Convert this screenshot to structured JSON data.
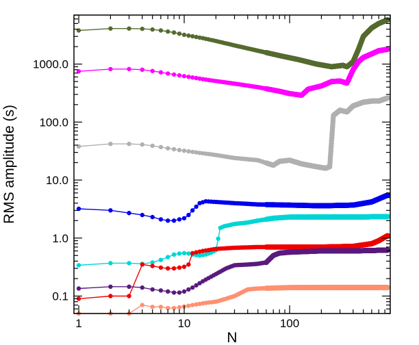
{
  "chart_data": {
    "type": "line",
    "xlabel": "N",
    "ylabel": "RMS amplitude (s)",
    "xscale": "log",
    "yscale": "log",
    "xlim": [
      0.9,
      900
    ],
    "ylim": [
      0.05,
      7000
    ],
    "grid": false,
    "legend": "none",
    "x_ticks": [
      {
        "value": 1,
        "label": "1"
      },
      {
        "value": 10,
        "label": "10"
      },
      {
        "value": 100,
        "label": "100"
      }
    ],
    "y_ticks": [
      {
        "value": 0.1,
        "label": "0.1"
      },
      {
        "value": 1,
        "label": "1.0"
      },
      {
        "value": 10,
        "label": "10.0"
      },
      {
        "value": 100,
        "label": "100.0"
      },
      {
        "value": 1000,
        "label": "1000.0"
      }
    ],
    "series": [
      {
        "color": "#556b2f",
        "points": [
          [
            1,
            3800
          ],
          [
            2,
            4100
          ],
          [
            3,
            4100
          ],
          [
            4,
            4050
          ],
          [
            5,
            3950
          ],
          [
            6,
            3800
          ],
          [
            8,
            3500
          ],
          [
            10,
            3200
          ],
          [
            15,
            2800
          ],
          [
            20,
            2500
          ],
          [
            30,
            2100
          ],
          [
            50,
            1700
          ],
          [
            80,
            1400
          ],
          [
            120,
            1200
          ],
          [
            180,
            1000
          ],
          [
            250,
            900
          ],
          [
            320,
            950
          ],
          [
            350,
            900
          ],
          [
            400,
            1100
          ],
          [
            450,
            1800
          ],
          [
            500,
            3000
          ],
          [
            600,
            4200
          ],
          [
            700,
            5000
          ],
          [
            850,
            5800
          ]
        ]
      },
      {
        "color": "#ff00ff",
        "points": [
          [
            1,
            750
          ],
          [
            2,
            820
          ],
          [
            3,
            820
          ],
          [
            4,
            800
          ],
          [
            5,
            760
          ],
          [
            6,
            720
          ],
          [
            8,
            660
          ],
          [
            10,
            620
          ],
          [
            15,
            550
          ],
          [
            20,
            510
          ],
          [
            30,
            460
          ],
          [
            50,
            400
          ],
          [
            80,
            340
          ],
          [
            100,
            310
          ],
          [
            130,
            290
          ],
          [
            150,
            370
          ],
          [
            200,
            420
          ],
          [
            250,
            500
          ],
          [
            300,
            510
          ],
          [
            350,
            470
          ],
          [
            400,
            800
          ],
          [
            450,
            1100
          ],
          [
            500,
            1300
          ],
          [
            600,
            1500
          ],
          [
            700,
            1700
          ],
          [
            850,
            1800
          ]
        ]
      },
      {
        "color": "#b0b0b0",
        "points": [
          [
            1,
            38
          ],
          [
            2,
            42
          ],
          [
            3,
            42
          ],
          [
            4,
            41
          ],
          [
            5,
            39
          ],
          [
            6,
            37
          ],
          [
            8,
            34
          ],
          [
            10,
            32
          ],
          [
            15,
            29
          ],
          [
            20,
            27
          ],
          [
            30,
            24
          ],
          [
            50,
            22
          ],
          [
            70,
            18
          ],
          [
            80,
            21
          ],
          [
            100,
            22
          ],
          [
            130,
            19
          ],
          [
            180,
            17
          ],
          [
            220,
            16
          ],
          [
            240,
            17
          ],
          [
            260,
            130
          ],
          [
            300,
            160
          ],
          [
            350,
            150
          ],
          [
            400,
            190
          ],
          [
            500,
            220
          ],
          [
            600,
            230
          ],
          [
            700,
            230
          ],
          [
            850,
            260
          ]
        ]
      },
      {
        "color": "#0000ee",
        "points": [
          [
            1,
            3.2
          ],
          [
            2,
            3.0
          ],
          [
            3,
            2.7
          ],
          [
            4,
            2.5
          ],
          [
            5,
            2.3
          ],
          [
            6,
            2.1
          ],
          [
            7,
            2.0
          ],
          [
            8,
            2.0
          ],
          [
            9,
            2.1
          ],
          [
            10,
            2.2
          ],
          [
            11,
            2.5
          ],
          [
            12,
            3.0
          ],
          [
            14,
            4.0
          ],
          [
            16,
            4.3
          ],
          [
            20,
            4.2
          ],
          [
            30,
            4.0
          ],
          [
            50,
            3.8
          ],
          [
            100,
            3.7
          ],
          [
            200,
            3.6
          ],
          [
            400,
            3.7
          ],
          [
            600,
            4.2
          ],
          [
            850,
            5.5
          ]
        ]
      },
      {
        "color": "#00d5d5",
        "points": [
          [
            1,
            0.34
          ],
          [
            2,
            0.37
          ],
          [
            3,
            0.37
          ],
          [
            4,
            0.36
          ],
          [
            5,
            0.38
          ],
          [
            6,
            0.42
          ],
          [
            7,
            0.47
          ],
          [
            8,
            0.52
          ],
          [
            9,
            0.54
          ],
          [
            10,
            0.55
          ],
          [
            11,
            0.54
          ],
          [
            12,
            0.52
          ],
          [
            14,
            0.5
          ],
          [
            16,
            0.52
          ],
          [
            18,
            0.56
          ],
          [
            20,
            0.62
          ],
          [
            22,
            1.5
          ],
          [
            24,
            1.6
          ],
          [
            26,
            1.65
          ],
          [
            28,
            1.7
          ],
          [
            30,
            1.75
          ],
          [
            40,
            1.85
          ],
          [
            50,
            2.0
          ],
          [
            70,
            2.2
          ],
          [
            100,
            2.3
          ],
          [
            200,
            2.3
          ],
          [
            400,
            2.3
          ],
          [
            850,
            2.35
          ]
        ]
      },
      {
        "color": "#ee0000",
        "points": [
          [
            1,
            0.09
          ],
          [
            2,
            0.1
          ],
          [
            3,
            0.1
          ],
          [
            4,
            0.35
          ],
          [
            5,
            0.33
          ],
          [
            6,
            0.31
          ],
          [
            7,
            0.3
          ],
          [
            8,
            0.3
          ],
          [
            9,
            0.31
          ],
          [
            10,
            0.32
          ],
          [
            11,
            0.35
          ],
          [
            12,
            0.55
          ],
          [
            15,
            0.6
          ],
          [
            20,
            0.65
          ],
          [
            30,
            0.68
          ],
          [
            50,
            0.7
          ],
          [
            100,
            0.7
          ],
          [
            200,
            0.7
          ],
          [
            400,
            0.72
          ],
          [
            600,
            0.8
          ],
          [
            700,
            0.9
          ],
          [
            850,
            1.1
          ]
        ]
      },
      {
        "color": "#5a1a7e",
        "points": [
          [
            1,
            0.135
          ],
          [
            2,
            0.145
          ],
          [
            3,
            0.145
          ],
          [
            4,
            0.14
          ],
          [
            5,
            0.13
          ],
          [
            6,
            0.125
          ],
          [
            7,
            0.12
          ],
          [
            8,
            0.115
          ],
          [
            9,
            0.115
          ],
          [
            10,
            0.12
          ],
          [
            12,
            0.14
          ],
          [
            15,
            0.18
          ],
          [
            20,
            0.24
          ],
          [
            25,
            0.3
          ],
          [
            30,
            0.34
          ],
          [
            40,
            0.35
          ],
          [
            50,
            0.36
          ],
          [
            60,
            0.38
          ],
          [
            70,
            0.5
          ],
          [
            80,
            0.55
          ],
          [
            100,
            0.57
          ],
          [
            200,
            0.6
          ],
          [
            400,
            0.6
          ],
          [
            850,
            0.62
          ]
        ]
      },
      {
        "color": "#ff9070",
        "points": [
          [
            1,
            0.05
          ],
          [
            2,
            0.05
          ],
          [
            3,
            0.05
          ],
          [
            4,
            0.07
          ],
          [
            5,
            0.065
          ],
          [
            6,
            0.065
          ],
          [
            7,
            0.062
          ],
          [
            8,
            0.062
          ],
          [
            9,
            0.064
          ],
          [
            10,
            0.066
          ],
          [
            12,
            0.07
          ],
          [
            15,
            0.075
          ],
          [
            20,
            0.08
          ],
          [
            25,
            0.09
          ],
          [
            30,
            0.1
          ],
          [
            40,
            0.13
          ],
          [
            50,
            0.135
          ],
          [
            100,
            0.14
          ],
          [
            200,
            0.14
          ],
          [
            400,
            0.14
          ],
          [
            850,
            0.14
          ]
        ]
      }
    ]
  }
}
